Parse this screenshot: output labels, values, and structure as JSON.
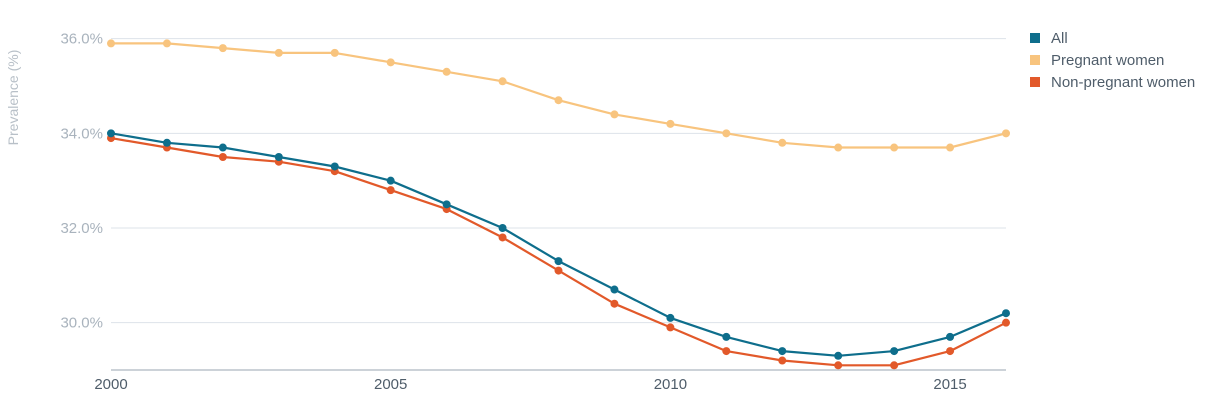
{
  "chart_data": {
    "type": "line",
    "title": "",
    "xlabel": "",
    "ylabel": "Prevalence (%)",
    "x": [
      2000,
      2001,
      2002,
      2003,
      2004,
      2005,
      2006,
      2007,
      2008,
      2009,
      2010,
      2011,
      2012,
      2013,
      2014,
      2015,
      2016
    ],
    "xlim": [
      2000,
      2016
    ],
    "ylim": [
      29.0,
      36.5
    ],
    "x_ticks": [
      2000,
      2005,
      2010,
      2015
    ],
    "x_tick_labels": [
      "2000",
      "2005",
      "2010",
      "2015"
    ],
    "y_ticks": [
      30.0,
      32.0,
      34.0,
      36.0
    ],
    "y_tick_labels": [
      "30.0%",
      "32.0%",
      "34.0%",
      "36.0%"
    ],
    "grid": true,
    "legend_position": "top-right",
    "series": [
      {
        "name": "All",
        "color": "#0e6e8c",
        "values": [
          34.0,
          33.8,
          33.7,
          33.5,
          33.3,
          33.0,
          32.5,
          32.0,
          31.3,
          30.7,
          30.1,
          29.7,
          29.4,
          29.3,
          29.4,
          29.7,
          30.2
        ]
      },
      {
        "name": "Pregnant women",
        "color": "#f8c47e",
        "values": [
          35.9,
          35.9,
          35.8,
          35.7,
          35.7,
          35.5,
          35.3,
          35.1,
          34.7,
          34.4,
          34.2,
          34.0,
          33.8,
          33.7,
          33.7,
          33.7,
          34.0
        ]
      },
      {
        "name": "Non-pregnant women",
        "color": "#e2592a",
        "values": [
          33.9,
          33.7,
          33.5,
          33.4,
          33.2,
          32.8,
          32.4,
          31.8,
          31.1,
          30.4,
          29.9,
          29.4,
          29.2,
          29.1,
          29.1,
          29.4,
          30.0
        ]
      }
    ]
  },
  "style": {
    "grid_color": "#dde3ea",
    "axis_color": "#9aa5b1"
  }
}
